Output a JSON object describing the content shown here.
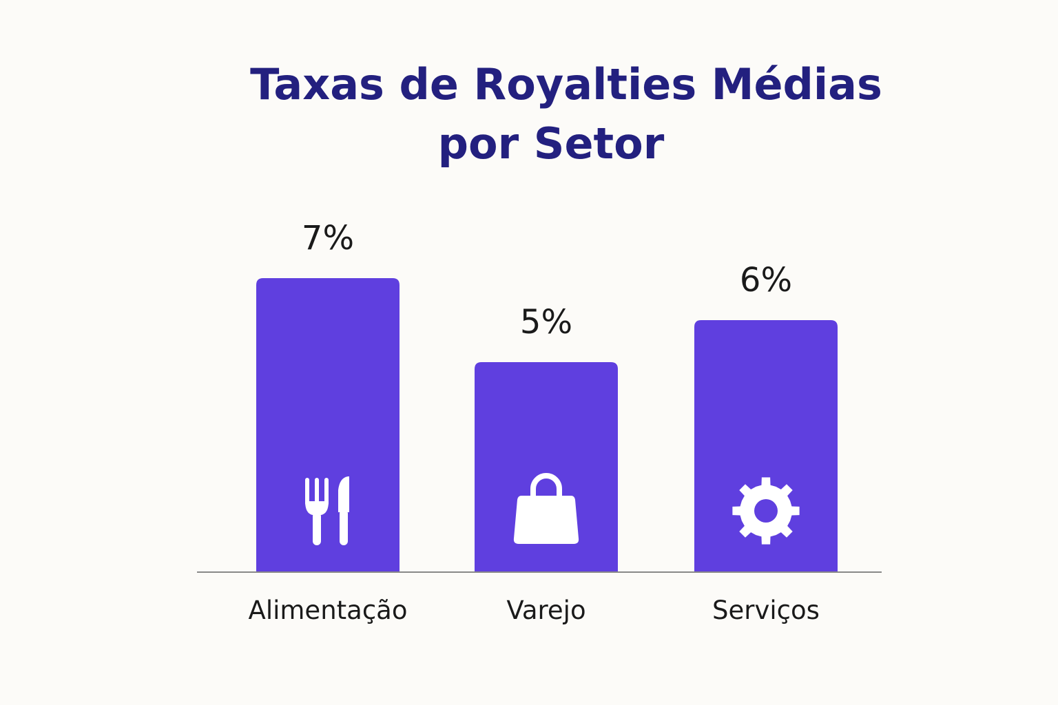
{
  "chart_data": {
    "type": "bar",
    "title_lines": [
      "Taxas de Royalties Médias",
      "por Setor"
    ],
    "categories": [
      "Alimentação",
      "Varejo",
      "Serviços"
    ],
    "values": [
      7,
      5,
      6
    ],
    "value_labels": [
      "7%",
      "5%",
      "6%"
    ],
    "icons": [
      "fork-knife-icon",
      "shopping-bag-icon",
      "gear-icon"
    ],
    "xlabel": "",
    "ylabel": "",
    "grid": false,
    "legend": "none"
  },
  "colors": {
    "bar": "#5f3fdf",
    "title": "#23207f",
    "text": "#1a1a1a",
    "baseline": "#888888",
    "icon": "#ffffff",
    "background": "#fcfbf8"
  }
}
